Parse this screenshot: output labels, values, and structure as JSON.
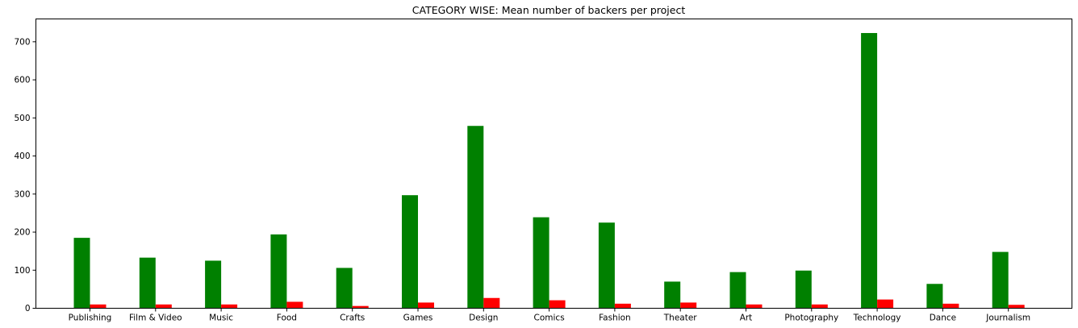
{
  "chart_data": {
    "type": "bar",
    "title": "CATEGORY WISE: Mean number of backers per project",
    "xlabel": "",
    "ylabel": "",
    "ylim": [
      0,
      760
    ],
    "yticks": [
      0,
      100,
      200,
      300,
      400,
      500,
      600,
      700
    ],
    "grid": false,
    "legend": "none",
    "categories": [
      "Publishing",
      "Film & Video",
      "Music",
      "Food",
      "Crafts",
      "Games",
      "Design",
      "Comics",
      "Fashion",
      "Theater",
      "Art",
      "Photography",
      "Technology",
      "Dance",
      "Journalism"
    ],
    "series": [
      {
        "color": "#008000",
        "values": [
          185,
          133,
          125,
          194,
          106,
          297,
          479,
          239,
          225,
          70,
          95,
          99,
          723,
          64,
          148
        ]
      },
      {
        "color": "#ff0000",
        "values": [
          10,
          10,
          10,
          17,
          6,
          15,
          27,
          21,
          12,
          15,
          10,
          10,
          23,
          12,
          9
        ]
      }
    ]
  }
}
